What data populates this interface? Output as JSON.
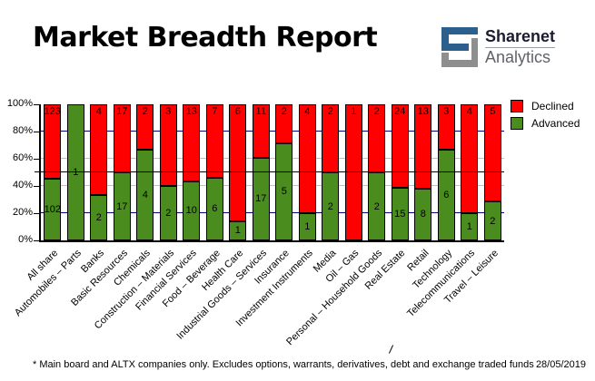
{
  "header": {
    "title": "Market Breadth Report",
    "logo": {
      "line1": "Sharenet",
      "line2": "Analytics",
      "blue": "#2d5f8c",
      "gray": "#8e8e8e"
    }
  },
  "chart_data": {
    "type": "bar",
    "stacked": "percent",
    "title": "Market Breadth Report",
    "xlabel": "",
    "ylabel": "",
    "ylim": [
      0,
      100
    ],
    "categories": [
      "All share",
      "Automobiles – Parts",
      "Banks",
      "Basic Resources",
      "Chemicals",
      "Construction – Materials",
      "Financial Services",
      "Food – Beverage",
      "Health Care",
      "Industrial Goods – Services",
      "Insurance",
      "Investment Instruments",
      "Media",
      "Oil – Gas",
      "Personal – Household Goods",
      "Real Estate",
      "Retail",
      "Technology",
      "Telecommunications",
      "Travel – Leisure"
    ],
    "series": [
      {
        "name": "Declined",
        "color": "#ff0000",
        "values": [
          123,
          0,
          4,
          17,
          2,
          3,
          13,
          7,
          6,
          11,
          2,
          4,
          2,
          1,
          2,
          24,
          13,
          3,
          4,
          5
        ]
      },
      {
        "name": "Advanced",
        "color": "#4a8c1e",
        "values": [
          102,
          1,
          2,
          17,
          4,
          2,
          10,
          6,
          1,
          17,
          5,
          1,
          2,
          0,
          2,
          15,
          8,
          6,
          1,
          2
        ]
      }
    ],
    "y_tick_labels": [
      "0%",
      "20%",
      "40%",
      "60%",
      "80%",
      "100%"
    ],
    "gridlines": [
      {
        "pct": 20,
        "color": "#000080"
      },
      {
        "pct": 40,
        "color": "#c0c0c0"
      },
      {
        "pct": 60,
        "color": "#c0c0c0"
      },
      {
        "pct": 80,
        "color": "#000080"
      }
    ],
    "reference_line": {
      "pct": 50,
      "color": "#000000"
    },
    "legend_position": "top-right",
    "legend": [
      "Declined",
      "Advanced"
    ]
  },
  "footer": {
    "note": "* Main board and ALTX companies only. Excludes options, warrants, derivatives, debt and exchange traded funds",
    "date": "28/05/2019"
  }
}
